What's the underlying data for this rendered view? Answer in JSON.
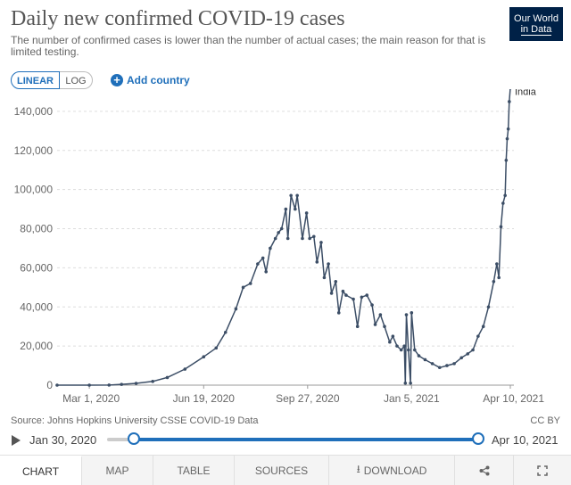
{
  "header": {
    "title": "Daily new confirmed COVID-19 cases",
    "subtitle": "The number of confirmed cases is lower than the number of actual cases; the main reason for that is limited testing.",
    "logo_line1": "Our World",
    "logo_line2": "in Data"
  },
  "controls": {
    "linear_label": "LINEAR",
    "log_label": "LOG",
    "add_country_label": "Add country",
    "add_icon": "plus-circle-icon"
  },
  "chart_data": {
    "type": "line",
    "title": "Daily new confirmed COVID-19 cases",
    "xlabel": "",
    "ylabel": "",
    "ylim": [
      0,
      150000
    ],
    "yticks": [
      0,
      20000,
      40000,
      60000,
      80000,
      100000,
      120000,
      140000
    ],
    "ytick_labels": [
      "0",
      "20,000",
      "40,000",
      "60,000",
      "80,000",
      "100,000",
      "120,000",
      "140,000"
    ],
    "xlim": [
      "2020-01-30",
      "2021-04-10"
    ],
    "xticks": [
      "2020-03-01",
      "2020-06-19",
      "2020-09-27",
      "2021-01-05",
      "2021-04-10"
    ],
    "xtick_labels": [
      "Mar 1, 2020",
      "Jun 19, 2020",
      "Sep 27, 2020",
      "Jan 5, 2021",
      "Apr 10, 2021"
    ],
    "grid": "horizontal-dashed",
    "line_color": "#3c4e66",
    "series": [
      {
        "name": "India",
        "points": [
          [
            "2020-01-30",
            0
          ],
          [
            "2020-03-01",
            0
          ],
          [
            "2020-03-20",
            60
          ],
          [
            "2020-04-01",
            400
          ],
          [
            "2020-04-15",
            900
          ],
          [
            "2020-05-01",
            1900
          ],
          [
            "2020-05-15",
            3900
          ],
          [
            "2020-06-01",
            8200
          ],
          [
            "2020-06-19",
            14500
          ],
          [
            "2020-07-01",
            19000
          ],
          [
            "2020-07-10",
            27000
          ],
          [
            "2020-07-20",
            39000
          ],
          [
            "2020-07-27",
            50000
          ],
          [
            "2020-08-03",
            52000
          ],
          [
            "2020-08-10",
            62000
          ],
          [
            "2020-08-15",
            65000
          ],
          [
            "2020-08-18",
            58000
          ],
          [
            "2020-08-22",
            70000
          ],
          [
            "2020-08-27",
            75000
          ],
          [
            "2020-08-30",
            78000
          ],
          [
            "2020-09-02",
            80000
          ],
          [
            "2020-09-06",
            90000
          ],
          [
            "2020-09-08",
            75000
          ],
          [
            "2020-09-11",
            97000
          ],
          [
            "2020-09-15",
            90000
          ],
          [
            "2020-09-17",
            97000
          ],
          [
            "2020-09-22",
            75000
          ],
          [
            "2020-09-26",
            88000
          ],
          [
            "2020-09-29",
            75000
          ],
          [
            "2020-10-03",
            76000
          ],
          [
            "2020-10-06",
            63000
          ],
          [
            "2020-10-10",
            73000
          ],
          [
            "2020-10-13",
            55000
          ],
          [
            "2020-10-17",
            62000
          ],
          [
            "2020-10-20",
            47000
          ],
          [
            "2020-10-24",
            53000
          ],
          [
            "2020-10-27",
            37000
          ],
          [
            "2020-10-31",
            48000
          ],
          [
            "2020-11-03",
            46000
          ],
          [
            "2020-11-10",
            44000
          ],
          [
            "2020-11-14",
            30000
          ],
          [
            "2020-11-18",
            45000
          ],
          [
            "2020-11-23",
            46000
          ],
          [
            "2020-11-28",
            41000
          ],
          [
            "2020-12-01",
            31000
          ],
          [
            "2020-12-06",
            36000
          ],
          [
            "2020-12-10",
            30000
          ],
          [
            "2020-12-15",
            22000
          ],
          [
            "2020-12-18",
            25000
          ],
          [
            "2020-12-22",
            20000
          ],
          [
            "2020-12-26",
            18000
          ],
          [
            "2020-12-29",
            20000
          ],
          [
            "2020-12-30",
            1000
          ],
          [
            "2020-12-31",
            36000
          ],
          [
            "2021-01-02",
            18000
          ],
          [
            "2021-01-04",
            1000
          ],
          [
            "2021-01-05",
            37000
          ],
          [
            "2021-01-08",
            18000
          ],
          [
            "2021-01-12",
            15000
          ],
          [
            "2021-01-18",
            13000
          ],
          [
            "2021-01-25",
            11000
          ],
          [
            "2021-02-01",
            9000
          ],
          [
            "2021-02-08",
            10000
          ],
          [
            "2021-02-15",
            11000
          ],
          [
            "2021-02-22",
            14000
          ],
          [
            "2021-02-28",
            16000
          ],
          [
            "2021-03-05",
            18000
          ],
          [
            "2021-03-10",
            25000
          ],
          [
            "2021-03-15",
            30000
          ],
          [
            "2021-03-20",
            40000
          ],
          [
            "2021-03-25",
            53000
          ],
          [
            "2021-03-28",
            62000
          ],
          [
            "2021-03-30",
            55000
          ],
          [
            "2021-04-01",
            81000
          ],
          [
            "2021-04-03",
            93000
          ],
          [
            "2021-04-05",
            97000
          ],
          [
            "2021-04-06",
            115000
          ],
          [
            "2021-04-07",
            126000
          ],
          [
            "2021-04-08",
            131000
          ],
          [
            "2021-04-09",
            145000
          ],
          [
            "2021-04-10",
            152000
          ]
        ]
      }
    ]
  },
  "footer": {
    "source": "Source: Johns Hopkins University CSSE COVID-19 Data",
    "license": "CC BY",
    "timeline_start": "Jan 30, 2020",
    "timeline_end": "Apr 10, 2021",
    "play_icon": "play-icon"
  },
  "tabs": [
    {
      "label": "CHART",
      "active": true
    },
    {
      "label": "MAP"
    },
    {
      "label": "TABLE"
    },
    {
      "label": "SOURCES"
    },
    {
      "label": "DOWNLOAD",
      "icon": "download-icon"
    },
    {
      "label": "",
      "icon": "share-icon"
    },
    {
      "label": "",
      "icon": "fullscreen-icon"
    }
  ]
}
